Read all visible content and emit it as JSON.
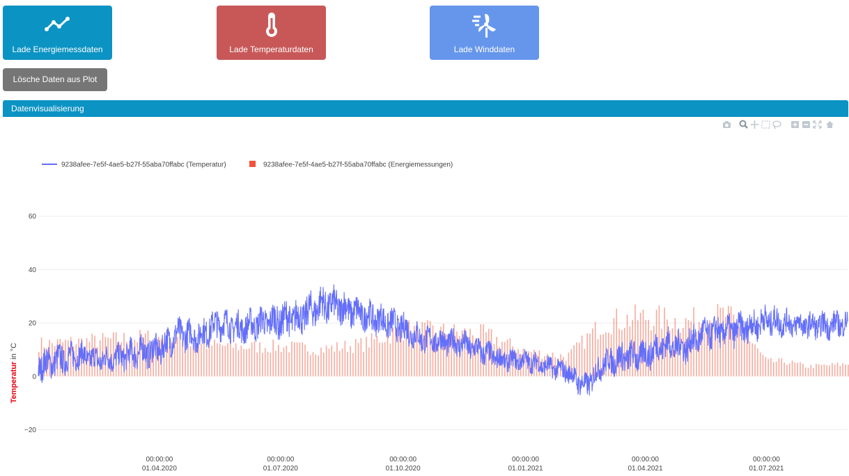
{
  "buttons": {
    "energy": {
      "label": "Lade Energiemessdaten",
      "icon": "line-chart-icon",
      "color": "#0b93c3"
    },
    "temperature": {
      "label": "Lade Temperaturdaten",
      "icon": "thermometer-icon",
      "color": "#c85858"
    },
    "wind": {
      "label": "Lade Winddaten",
      "icon": "wind-turbine-icon",
      "color": "#6696ec"
    },
    "clear": {
      "label": "Lösche Daten aus Plot",
      "color": "#767676"
    }
  },
  "section": {
    "title": "Datenvisualisierung"
  },
  "modebar": [
    "camera-icon",
    "zoom-icon",
    "pan-icon",
    "box-select-icon",
    "lasso-icon",
    "zoom-in-icon",
    "zoom-out-icon",
    "autoscale-icon",
    "home-icon"
  ],
  "chart_data": {
    "type": "line",
    "title": "",
    "ylabel": {
      "highlight": "Temperatur",
      "rest": " in °C",
      "highlight_color": "#e8000b"
    },
    "ylim": [
      -30,
      68
    ],
    "yticks": [
      -20,
      0,
      20,
      40,
      60
    ],
    "grid": true,
    "legend_position": "top-left",
    "x_range": [
      "2020-01-01",
      "2021-08-31"
    ],
    "xticks": [
      {
        "date": "2020-04-01",
        "time": "00:00:00",
        "label": "01.04.2020"
      },
      {
        "date": "2020-07-01",
        "time": "00:00:00",
        "label": "01.07.2020"
      },
      {
        "date": "2020-10-01",
        "time": "00:00:00",
        "label": "01.10.2020"
      },
      {
        "date": "2021-01-01",
        "time": "00:00:00",
        "label": "01.01.2021"
      },
      {
        "date": "2021-04-01",
        "time": "00:00:00",
        "label": "01.04.2021"
      },
      {
        "date": "2021-07-01",
        "time": "00:00:00",
        "label": "01.07.2021"
      }
    ],
    "series": [
      {
        "name": "9238afee-7e5f-4ae5-b27f-55aba70ffabc (Temperatur)",
        "type": "line",
        "color": "#636efa",
        "x": [
          "2020-01-01",
          "2020-01-15",
          "2020-02-01",
          "2020-02-15",
          "2020-03-01",
          "2020-03-15",
          "2020-04-01",
          "2020-04-15",
          "2020-05-01",
          "2020-05-15",
          "2020-06-01",
          "2020-06-15",
          "2020-07-01",
          "2020-07-15",
          "2020-08-01",
          "2020-08-15",
          "2020-09-01",
          "2020-09-15",
          "2020-10-01",
          "2020-10-15",
          "2020-11-01",
          "2020-11-15",
          "2020-12-01",
          "2020-12-15",
          "2021-01-01",
          "2021-01-15",
          "2021-02-01",
          "2021-02-15",
          "2021-03-01",
          "2021-03-15",
          "2021-04-01",
          "2021-04-15",
          "2021-05-01",
          "2021-05-15",
          "2021-06-01",
          "2021-06-15",
          "2021-07-01",
          "2021-07-15",
          "2021-08-01",
          "2021-08-15",
          "2021-08-31"
        ],
        "y": [
          4,
          6,
          8,
          6,
          7,
          9,
          10,
          16,
          15,
          20,
          18,
          20,
          21,
          22,
          27,
          26,
          23,
          21,
          18,
          14,
          13,
          12,
          9,
          6,
          6,
          4,
          2,
          -4,
          5,
          7,
          8,
          12,
          11,
          16,
          17,
          18,
          21,
          20,
          19,
          19,
          20
        ],
        "amplitude": [
          6,
          6,
          5,
          5,
          5,
          6,
          6,
          6,
          6,
          6,
          6,
          6,
          7,
          7,
          7,
          7,
          6,
          6,
          6,
          5,
          5,
          5,
          5,
          4,
          4,
          4,
          4,
          5,
          5,
          6,
          6,
          6,
          6,
          6,
          6,
          6,
          6,
          5,
          5,
          5,
          5
        ]
      },
      {
        "name": "9238afee-7e5f-4ae5-b27f-55aba70ffabc (Energiemessungen)",
        "type": "bar",
        "color": "#ef553b",
        "x": [
          "2020-01-01",
          "2020-02-01",
          "2020-03-01",
          "2020-04-01",
          "2020-05-01",
          "2020-06-01",
          "2020-07-01",
          "2020-08-01",
          "2020-09-01",
          "2020-10-01",
          "2020-11-01",
          "2020-12-01",
          "2021-01-01",
          "2021-02-01",
          "2021-03-01",
          "2021-04-01",
          "2021-05-01",
          "2021-06-01",
          "2021-07-01",
          "2021-07-15",
          "2021-08-01",
          "2021-08-31"
        ],
        "y": [
          13,
          14,
          15,
          16,
          13,
          12,
          12,
          11,
          13,
          19,
          18,
          17,
          10,
          8,
          22,
          24,
          22,
          25,
          6,
          6,
          4,
          5
        ]
      }
    ]
  }
}
